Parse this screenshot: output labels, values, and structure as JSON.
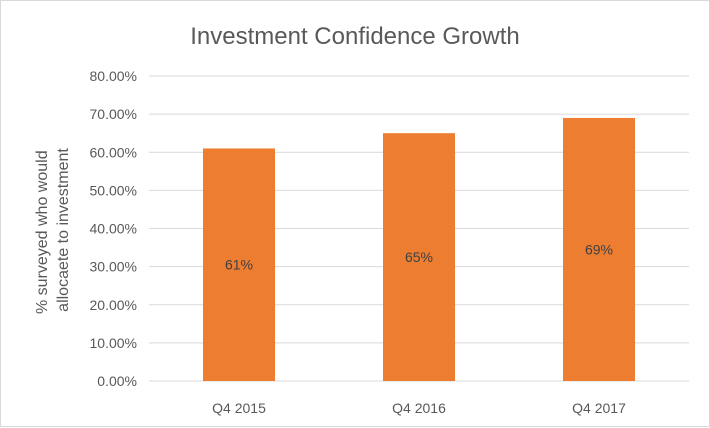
{
  "chart_data": {
    "type": "bar",
    "title": "Investment Confidence Growth",
    "categories": [
      "Q4 2015",
      "Q4 2016",
      "Q4 2017"
    ],
    "values": [
      61,
      65,
      69
    ],
    "data_labels": [
      "61%",
      "65%",
      "69%"
    ],
    "ylabel_lines": [
      "% surveyed who would",
      "allocaete to investment"
    ],
    "xlabel": "",
    "ylim": [
      0,
      80
    ],
    "yticks": [
      "0.00%",
      "10.00%",
      "20.00%",
      "30.00%",
      "40.00%",
      "50.00%",
      "60.00%",
      "70.00%",
      "80.00%"
    ],
    "ytick_values": [
      0,
      10,
      20,
      30,
      40,
      50,
      60,
      70,
      80
    ],
    "bar_color": "#ED7D31",
    "grid": true,
    "gridline_color": "#D9D9D9",
    "text_color": "#595959",
    "legend": "none"
  }
}
